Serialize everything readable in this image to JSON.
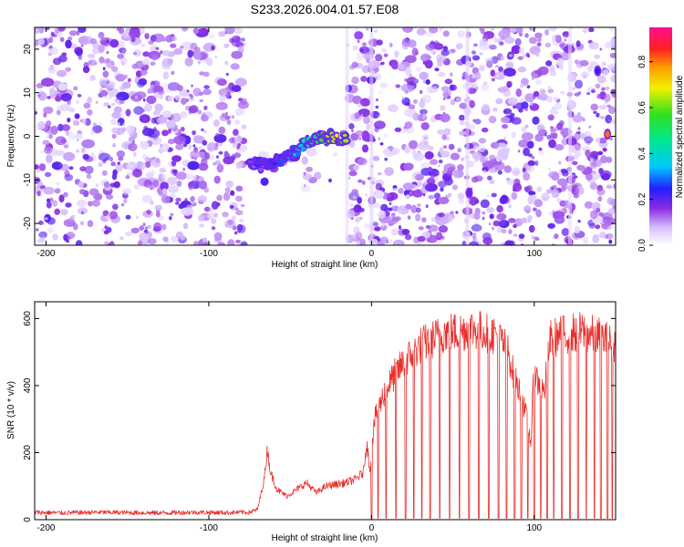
{
  "figure_title": "S233.2026.004.01.57.E08",
  "chart_data": [
    {
      "type": "heatmap",
      "title": "S233.2026.004.01.57.E08",
      "xlabel": "Height of straight line (km)",
      "ylabel": "Frequency (Hz)",
      "xlim": [
        -207,
        150
      ],
      "ylim": [
        -25,
        25
      ],
      "xticks": [
        -200,
        -100,
        0,
        100
      ],
      "yticks": [
        -20,
        -10,
        0,
        10,
        20
      ],
      "xtick_labels": [
        "-200",
        "-100",
        "0",
        "100"
      ],
      "ytick_labels": [
        "-20",
        "-10",
        "0",
        "10",
        "20"
      ],
      "colorbar": {
        "label": "Normalized spectral amplitude",
        "range": [
          0,
          0.95
        ],
        "ticks": [
          0,
          0.2,
          0.4,
          0.6,
          0.8
        ],
        "tick_labels": [
          "0.0",
          "0.2",
          "0.4",
          "0.6",
          "0.8"
        ],
        "colormap": "rainbow (white-violet-blue-cyan-green-yellow-orange-red-magenta)"
      },
      "gap_regions_km": [
        [
          -78,
          -15
        ]
      ],
      "signal_track": {
        "description": "strong Doppler track rising from about -6 Hz to 0 Hz",
        "x": [
          -75,
          -68,
          -60,
          -52,
          -45,
          -38,
          -30,
          -22,
          -15
        ],
        "y": [
          -6,
          -6.5,
          -6,
          -5,
          -3,
          -1.5,
          -0.5,
          0,
          -0.5
        ],
        "amplitude": [
          0.15,
          0.2,
          0.25,
          0.3,
          0.35,
          0.45,
          0.6,
          0.7,
          0.65
        ]
      },
      "isolated_features": [
        {
          "x": 60,
          "y": -13,
          "amplitude": 0.2
        },
        {
          "x": 139,
          "y": 15,
          "amplitude": 0.25
        },
        {
          "x": 145,
          "y": 0.5,
          "amplitude": 0.85
        }
      ]
    },
    {
      "type": "line",
      "xlabel": "Height of straight line (km)",
      "ylabel": "SNR (10 * v/v)",
      "xlim": [
        -207,
        150
      ],
      "ylim": [
        0,
        650
      ],
      "xticks": [
        -200,
        -100,
        0,
        100
      ],
      "yticks": [
        0,
        200,
        400,
        600
      ],
      "xtick_labels": [
        "-200",
        "-100",
        "0",
        "100"
      ],
      "ytick_labels": [
        "0",
        "200",
        "400",
        "600"
      ],
      "color": "#e8302c",
      "series": [
        {
          "name": "SNR",
          "x": [
            -207,
            -190,
            -170,
            -150,
            -130,
            -110,
            -90,
            -75,
            -70,
            -66,
            -64,
            -62,
            -58,
            -52,
            -46,
            -40,
            -34,
            -28,
            -22,
            -16,
            -10,
            -5,
            -3,
            -1,
            2,
            8,
            15,
            22,
            30,
            38,
            46,
            54,
            62,
            70,
            78,
            84,
            88,
            92,
            95,
            98,
            100,
            102,
            106,
            110,
            120,
            130,
            140,
            150
          ],
          "y": [
            22,
            20,
            22,
            21,
            20,
            22,
            21,
            22,
            30,
            120,
            210,
            140,
            90,
            70,
            90,
            110,
            80,
            100,
            105,
            110,
            120,
            140,
            230,
            150,
            300,
            380,
            440,
            480,
            520,
            540,
            560,
            560,
            570,
            560,
            550,
            500,
            420,
            370,
            310,
            230,
            470,
            410,
            380,
            540,
            555,
            560,
            545,
            520
          ]
        }
      ],
      "dropout_positions_km": [
        0,
        4,
        9,
        15,
        21,
        26,
        31,
        36,
        42,
        48,
        54,
        60,
        66,
        72,
        78,
        83,
        88,
        92,
        96,
        100,
        104,
        108,
        112,
        117,
        122,
        127,
        132,
        137,
        141,
        145,
        148
      ]
    }
  ]
}
